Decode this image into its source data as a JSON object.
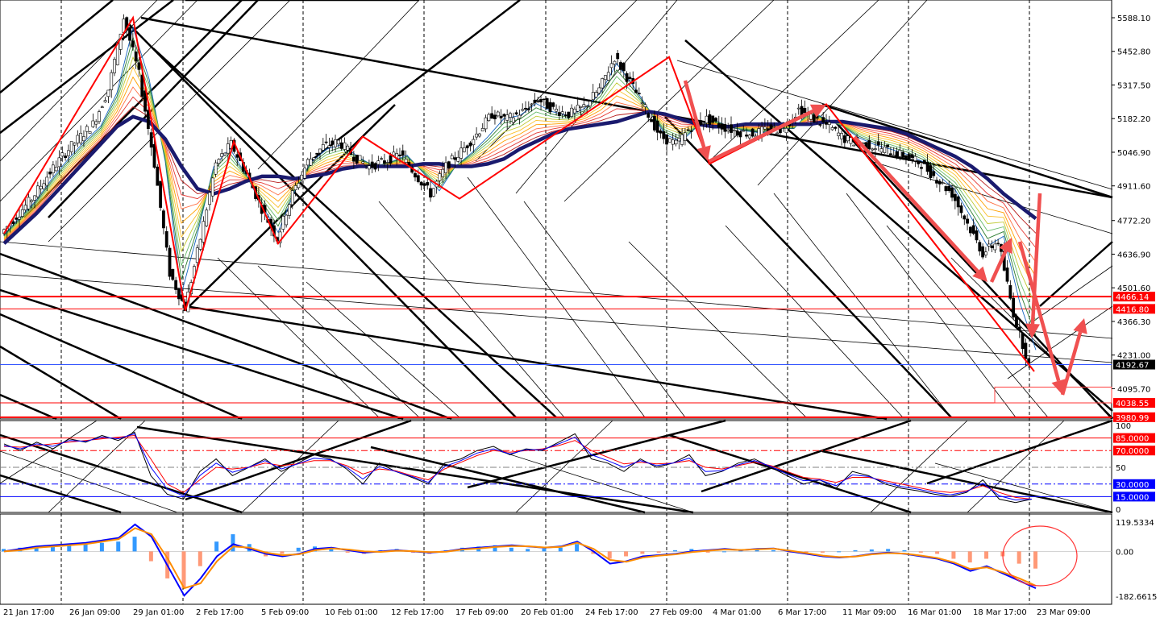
{
  "chart_data": [
    {
      "type": "candlestick",
      "panel": "price",
      "price_axis": {
        "range": [
          3980.4,
          5588.1
        ],
        "tick_labels": [
          "5588.10",
          "5452.80",
          "5317.50",
          "5182.20",
          "5046.90",
          "4911.60",
          "4772.20",
          "4636.90",
          "4501.60",
          "4366.30",
          "4231.00",
          "4095.70",
          "3980.40"
        ]
      },
      "x_axis_labels": [
        "21 Jan 17:00",
        "26 Jan 09:00",
        "29 Jan 01:00",
        "2 Feb 17:00",
        "5 Feb 09:00",
        "10 Feb 01:00",
        "12 Feb 17:00",
        "17 Feb 09:00",
        "20 Feb 01:00",
        "24 Feb 17:00",
        "27 Feb 09:00",
        "4 Mar 01:00",
        "6 Mar 17:00",
        "11 Mar 09:00",
        "16 Mar 01:00",
        "18 Mar 17:00",
        "23 Mar 09:00"
      ],
      "close_path": [
        4720,
        4790,
        4860,
        4950,
        5030,
        5100,
        5160,
        5300,
        5588,
        5360,
        5000,
        4560,
        4420,
        4700,
        5000,
        5080,
        4960,
        4820,
        4700,
        4880,
        5010,
        5070,
        5090,
        5030,
        4990,
        5010,
        5040,
        4960,
        4880,
        4990,
        5050,
        5120,
        5200,
        5180,
        5210,
        5260,
        5220,
        5200,
        5230,
        5300,
        5430,
        5330,
        5220,
        5110,
        5080,
        5150,
        5180,
        5150,
        5130,
        5120,
        5140,
        5140,
        5220,
        5180,
        5150,
        5100,
        5080,
        5070,
        5050,
        5030,
        5000,
        4940,
        4880,
        4760,
        4640,
        4690,
        4400,
        4192.67
      ],
      "moving_average": [
        4680,
        4740,
        4800,
        4870,
        4940,
        5010,
        5080,
        5150,
        5190,
        5170,
        5100,
        4990,
        4900,
        4880,
        4900,
        4930,
        4950,
        4950,
        4940,
        4950,
        4960,
        4980,
        4990,
        4990,
        4990,
        4990,
        5000,
        5000,
        4990,
        4990,
        5000,
        5020,
        5060,
        5090,
        5120,
        5140,
        5150,
        5160,
        5170,
        5190,
        5210,
        5200,
        5180,
        5160,
        5150,
        5150,
        5160,
        5160,
        5160,
        5160,
        5160,
        5170,
        5170,
        5160,
        5150,
        5140,
        5120,
        5090,
        5060,
        5030,
        4990,
        4940,
        4880,
        4830,
        4780
      ],
      "zigzag": [
        {
          "x": "21 Jan 17:00",
          "y": 4720
        },
        {
          "x": "29 Jan 01:00",
          "y": 5588.1
        },
        {
          "x": "2 Feb 17:00",
          "y": 4410
        },
        {
          "x": "2 Feb 17:00",
          "y": 5090
        },
        {
          "x": "5 Feb 09:00",
          "y": 4680
        },
        {
          "x": "10 Feb 01:00",
          "y": 5110
        },
        {
          "x": "17 Feb 09:00",
          "y": 4860
        },
        {
          "x": "27 Feb 09:00",
          "y": 5430
        },
        {
          "x": "4 Mar 01:00",
          "y": 5000
        },
        {
          "x": "11 Mar 09:00",
          "y": 5240
        },
        {
          "x": "23 Mar 09:00",
          "y": 4165
        }
      ],
      "horizontal_levels": [
        {
          "label": "4466.14",
          "value": 4466.14,
          "color": "#ff0000"
        },
        {
          "label": "4416.80",
          "value": 4416.8,
          "color": "#ff0000"
        },
        {
          "label": "4192.67",
          "value": 4192.67,
          "color": "#000000",
          "kind": "current price"
        },
        {
          "label": "4038.55",
          "value": 4038.55,
          "color": "#ff0000"
        },
        {
          "label": "3980.99",
          "value": 3980.99,
          "color": "#ff0000"
        }
      ],
      "drawn_arrows": 8,
      "drawn_box": {
        "from": 4038.55,
        "to": 4095.7
      }
    },
    {
      "type": "line",
      "panel": "stochastic",
      "range": [
        0,
        100
      ],
      "tick_labels": [
        "100",
        "85.0000",
        "70.0000",
        "50",
        "30.0000",
        "15.0000",
        "0"
      ],
      "levels": [
        {
          "label": "85.0000",
          "value": 85,
          "color": "#ff0000"
        },
        {
          "label": "70.0000",
          "value": 70,
          "color": "#ff0000",
          "style": "dashed"
        },
        {
          "label": "50",
          "value": 50,
          "color": "#808080",
          "style": "dashed"
        },
        {
          "label": "30.0000",
          "value": 30,
          "color": "#0000ff",
          "style": "dashed"
        },
        {
          "label": "15.0000",
          "value": 15,
          "color": "#0000ff"
        }
      ],
      "series": [
        {
          "color": "#000000",
          "values": [
            78,
            70,
            80,
            72,
            84,
            80,
            88,
            82,
            92,
            40,
            18,
            12,
            45,
            60,
            40,
            50,
            60,
            45,
            55,
            65,
            60,
            48,
            30,
            55,
            45,
            38,
            30,
            55,
            60,
            70,
            75,
            65,
            72,
            70,
            80,
            90,
            60,
            55,
            45,
            60,
            50,
            55,
            65,
            40,
            45,
            55,
            60,
            50,
            40,
            30,
            35,
            25,
            45,
            40,
            30,
            25,
            22,
            18,
            15,
            20,
            35,
            12,
            8,
            12
          ]
        },
        {
          "color": "#ff0000",
          "values": [
            75,
            74,
            76,
            78,
            80,
            82,
            84,
            86,
            88,
            60,
            30,
            20,
            35,
            50,
            48,
            50,
            55,
            52,
            54,
            58,
            58,
            52,
            42,
            48,
            46,
            40,
            35,
            48,
            56,
            64,
            70,
            68,
            70,
            72,
            76,
            82,
            70,
            62,
            54,
            56,
            54,
            55,
            58,
            50,
            48,
            52,
            56,
            52,
            45,
            38,
            36,
            32,
            38,
            38,
            34,
            30,
            26,
            22,
            20,
            22,
            28,
            20,
            14,
            12
          ]
        },
        {
          "color": "#0000ff",
          "values": [
            76,
            72,
            78,
            75,
            82,
            81,
            86,
            84,
            90,
            50,
            24,
            16,
            40,
            55,
            44,
            50,
            58,
            48,
            54,
            61,
            59,
            50,
            36,
            51,
            45,
            39,
            32,
            51,
            58,
            67,
            72,
            66,
            71,
            71,
            78,
            86,
            65,
            58,
            50,
            58,
            52,
            55,
            61,
            45,
            46,
            53,
            58,
            51,
            42,
            34,
            35,
            28,
            41,
            39,
            32,
            27,
            24,
            20,
            17,
            21,
            31,
            16,
            11,
            12
          ]
        }
      ]
    },
    {
      "type": "bar",
      "panel": "macd",
      "tick_labels": [
        "119.5334",
        "0.00",
        "-182.6615"
      ],
      "range": [
        -182.6615,
        119.5334
      ],
      "histogram": [
        10,
        15,
        20,
        18,
        25,
        30,
        35,
        40,
        60,
        -40,
        -110,
        -150,
        -60,
        40,
        70,
        30,
        -20,
        -10,
        15,
        20,
        10,
        -5,
        -10,
        5,
        10,
        -5,
        -10,
        5,
        15,
        20,
        25,
        15,
        10,
        12,
        15,
        30,
        -10,
        -30,
        -20,
        -10,
        -5,
        5,
        10,
        -5,
        0,
        5,
        10,
        5,
        -5,
        -10,
        -5,
        0,
        5,
        8,
        10,
        5,
        -5,
        -10,
        -30,
        -45,
        -30,
        -20,
        -50,
        -70
      ],
      "series": [
        {
          "color": "#0000ff",
          "values": [
            0,
            10,
            20,
            25,
            30,
            35,
            45,
            55,
            110,
            60,
            -60,
            -180,
            -110,
            -20,
            30,
            10,
            -10,
            -20,
            -10,
            10,
            15,
            5,
            -5,
            0,
            5,
            0,
            -5,
            0,
            10,
            15,
            20,
            25,
            20,
            15,
            20,
            40,
            0,
            -50,
            -40,
            -20,
            -15,
            -10,
            0,
            5,
            10,
            5,
            10,
            12,
            0,
            -10,
            -20,
            -25,
            -20,
            -10,
            -5,
            -10,
            -20,
            -30,
            -50,
            -80,
            -60,
            -90,
            -120,
            -150
          ]
        },
        {
          "color": "#ff8c00",
          "values": [
            0,
            5,
            15,
            20,
            25,
            30,
            40,
            50,
            95,
            70,
            -30,
            -150,
            -130,
            -40,
            20,
            15,
            -5,
            -15,
            -12,
            5,
            12,
            8,
            0,
            -2,
            3,
            1,
            -3,
            -1,
            8,
            12,
            18,
            22,
            21,
            16,
            18,
            35,
            10,
            -35,
            -42,
            -25,
            -17,
            -12,
            -3,
            3,
            8,
            6,
            9,
            11,
            3,
            -7,
            -17,
            -23,
            -21,
            -12,
            -7,
            -9,
            -17,
            -27,
            -45,
            -72,
            -65,
            -85,
            -110,
            -140
          ]
        }
      ],
      "annotation": "red circle around latest values"
    }
  ]
}
